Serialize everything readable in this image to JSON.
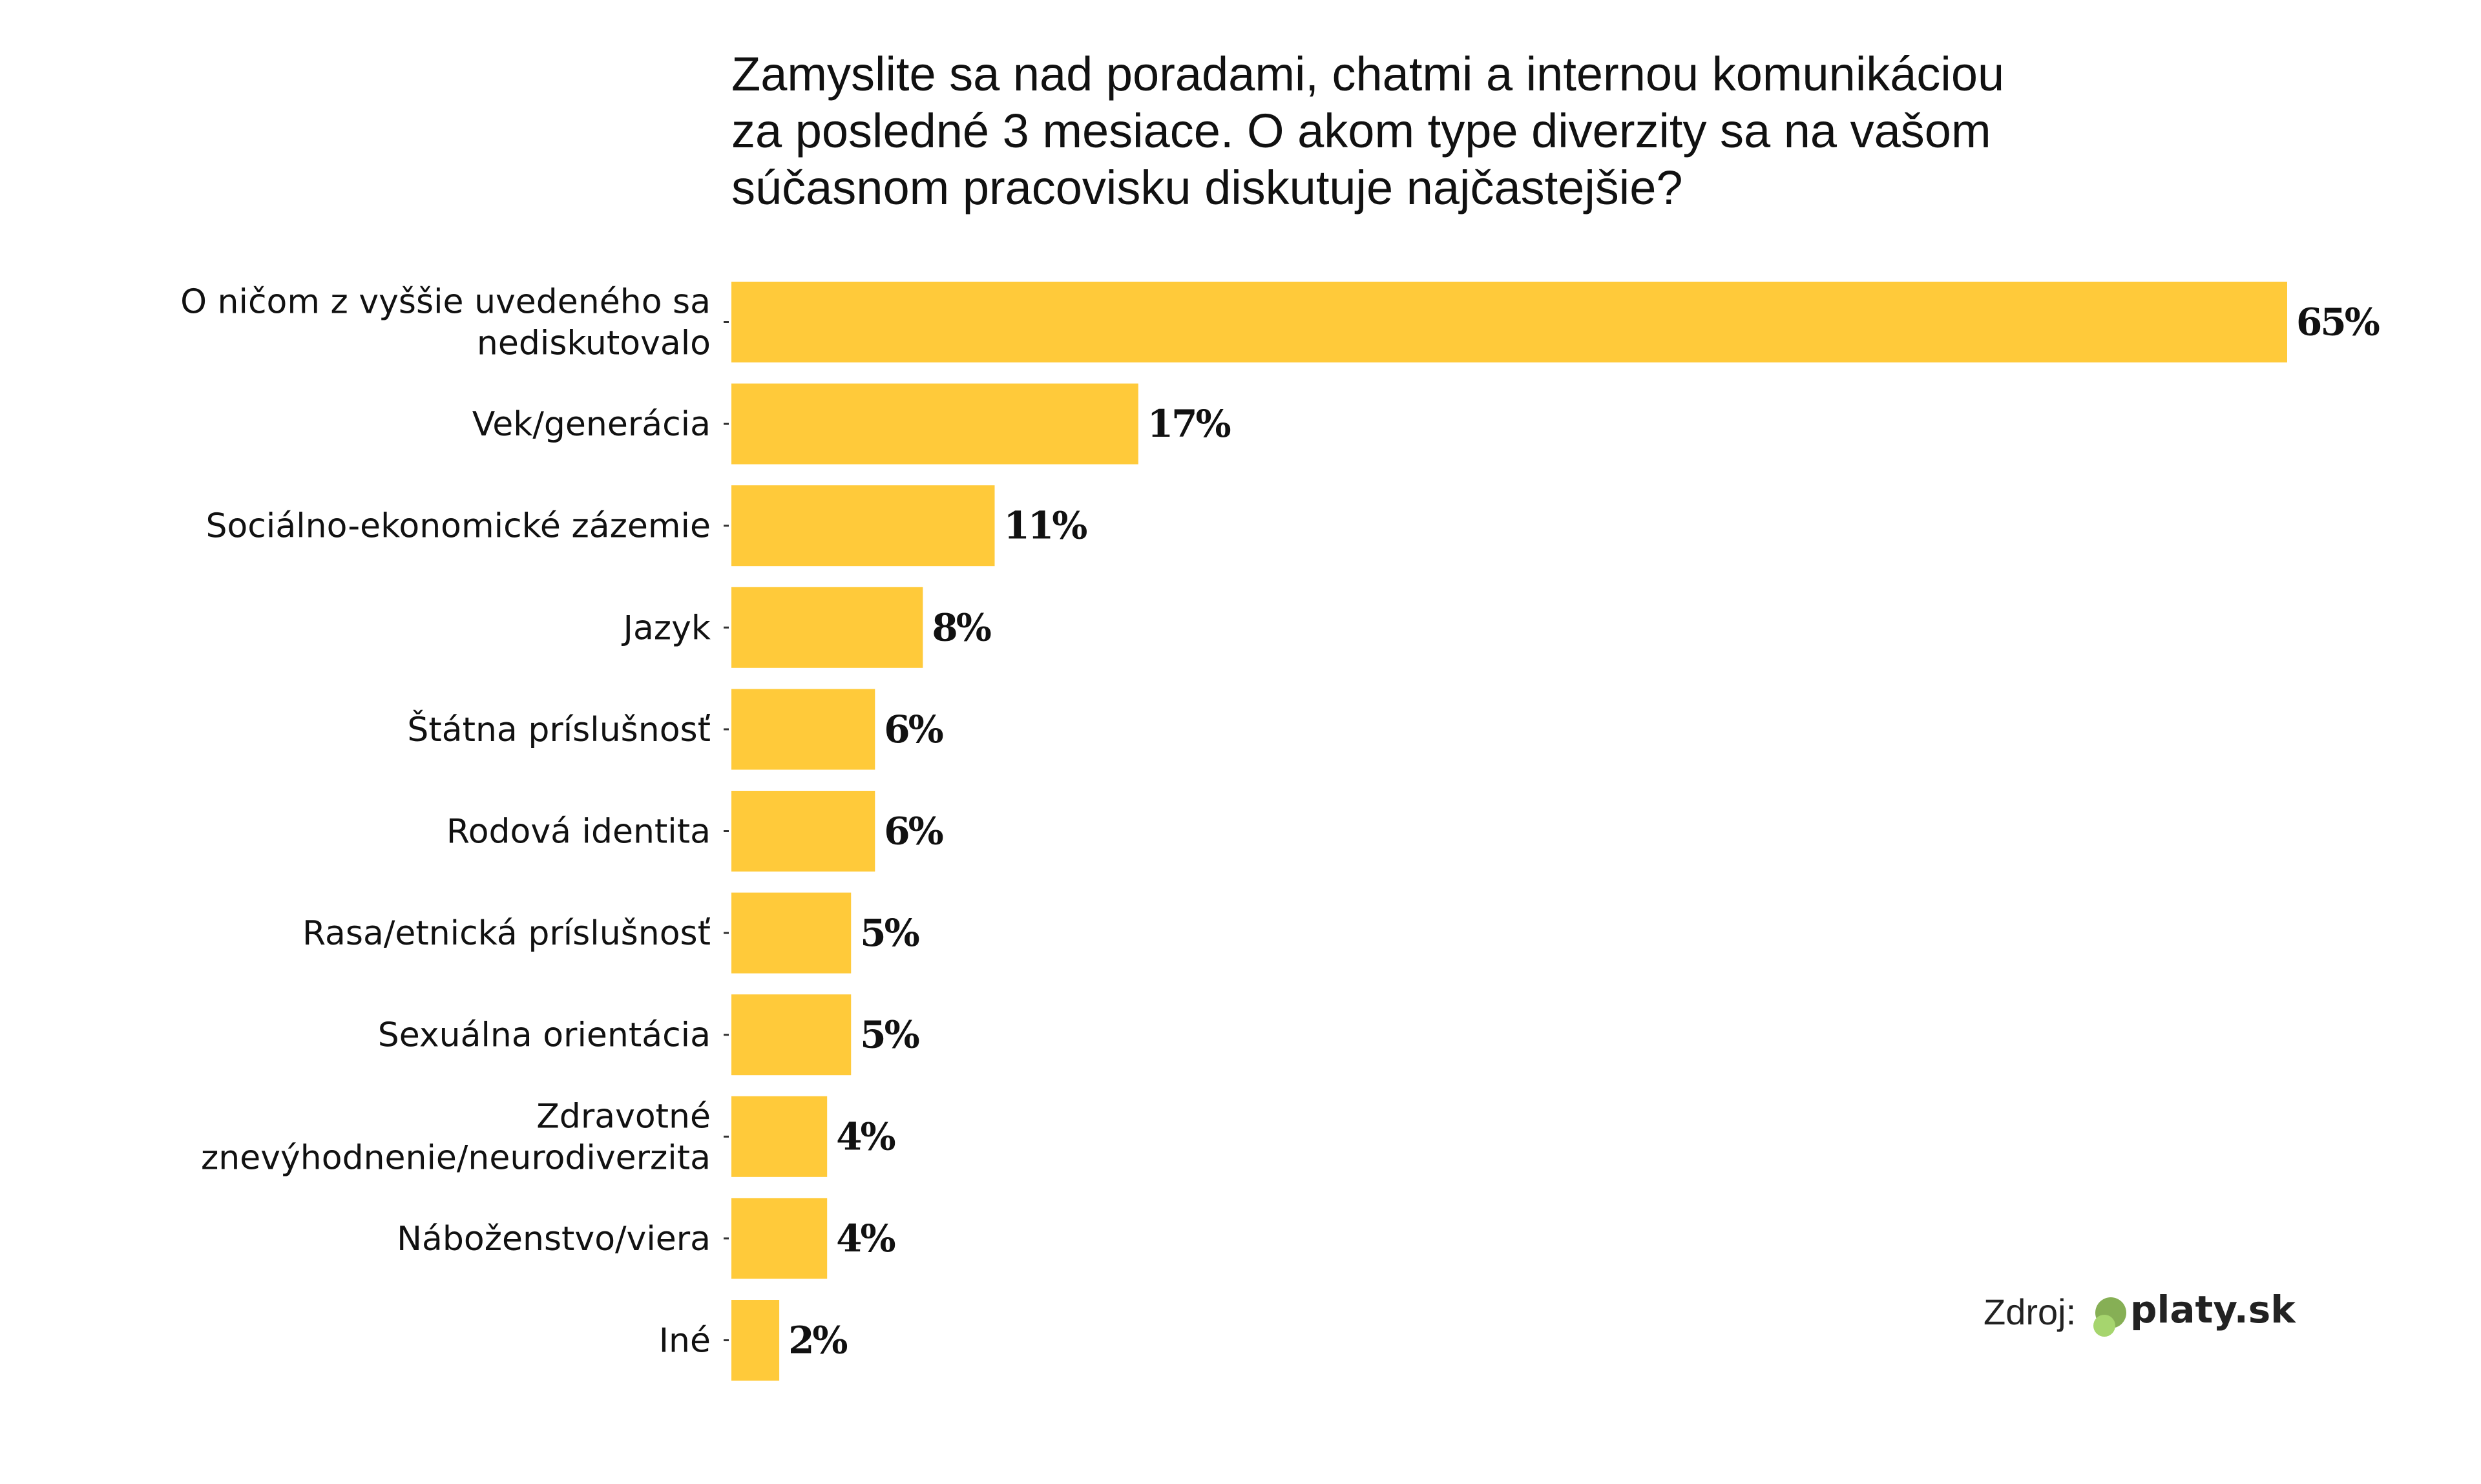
{
  "chart_data": {
    "type": "bar",
    "orientation": "horizontal",
    "title_lines": [
      "Zamyslite sa nad poradami, chatmi a internou komunikáciou",
      "za posledné 3 mesiace. O akom type diverzity sa na vašom",
      "súčasnom pracovisku diskutuje najčastejšie?"
    ],
    "categories": [
      [
        "O ničom z vyššie uvedeného sa",
        "nediskutovalo"
      ],
      [
        "Vek/generácia"
      ],
      [
        "Sociálno-ekonomické zázemie"
      ],
      [
        "Jazyk"
      ],
      [
        "Štátna príslušnosť"
      ],
      [
        "Rodová identita"
      ],
      [
        "Rasa/etnická príslušnosť"
      ],
      [
        "Sexuálna orientácia"
      ],
      [
        "Zdravotné",
        "znevýhodnenie/neurodiverzita"
      ],
      [
        "Náboženstvo/viera"
      ],
      [
        "Iné"
      ]
    ],
    "values": [
      65,
      17,
      11,
      8,
      6,
      6,
      5,
      5,
      4,
      4,
      2
    ],
    "value_labels": [
      "65%",
      "17%",
      "11%",
      "8%",
      "6%",
      "6%",
      "5%",
      "5%",
      "4%",
      "4%",
      "2%"
    ],
    "unit": "%",
    "xlim": [
      0,
      65
    ],
    "grid": false,
    "bar_color": "#FFCA3A"
  },
  "source": {
    "label": "Zdroj:",
    "brand": "platy.sk",
    "logo_colors": [
      "#86AF55",
      "#A6D56E"
    ]
  }
}
